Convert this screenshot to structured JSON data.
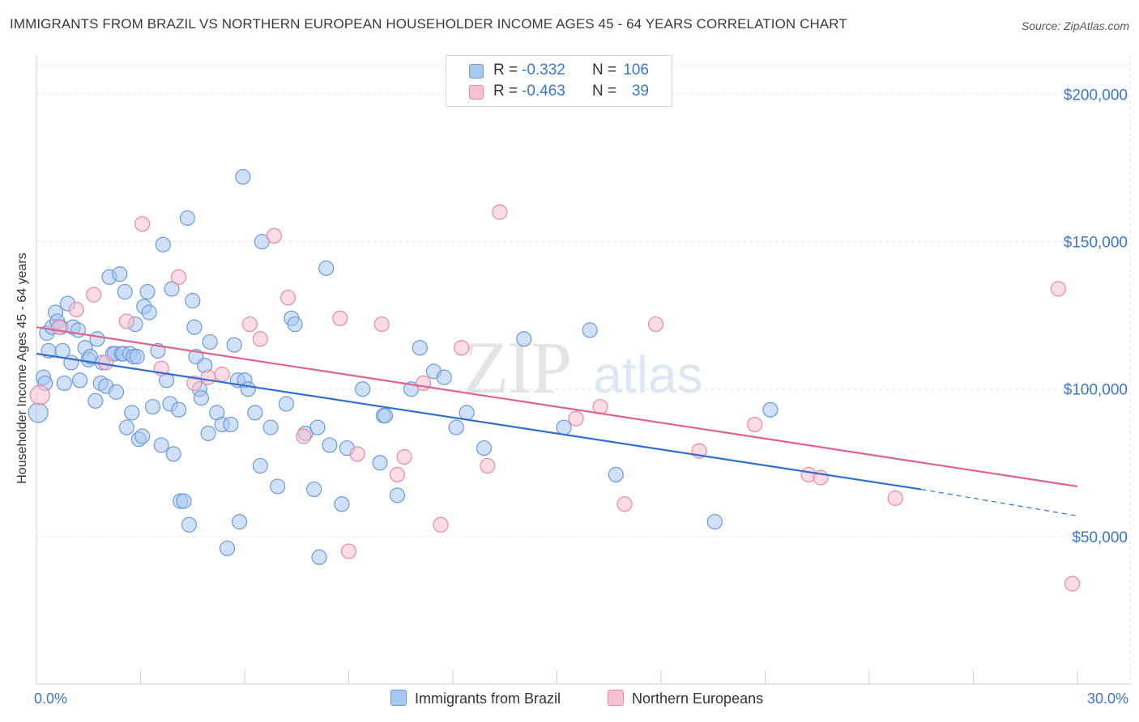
{
  "title": "IMMIGRANTS FROM BRAZIL VS NORTHERN EUROPEAN HOUSEHOLDER INCOME AGES 45 - 64 YEARS CORRELATION CHART",
  "source": "Source: ZipAtlas.com",
  "watermark": {
    "zip": "ZIP",
    "atlas": "atlas"
  },
  "legend_top": [
    {
      "r_label": "R = ",
      "r_value": "-0.332",
      "n_label": "N = ",
      "n_value": "106",
      "color": "#a9c8f0",
      "border": "#6b9ad8"
    },
    {
      "r_label": "R = ",
      "r_value": "-0.463",
      "n_label": "N = ",
      "n_value": "39",
      "color": "#f7c0d0",
      "border": "#e58aa6"
    }
  ],
  "legend_bottom": [
    {
      "label": "Immigrants from Brazil",
      "color": "#a9c8f0",
      "border": "#6b9ad8"
    },
    {
      "label": "Northern Europeans",
      "color": "#f7c0d0",
      "border": "#e58aa6"
    }
  ],
  "chart_data": {
    "type": "scatter",
    "xlabel": "",
    "ylabel": "Householder Income Ages 45 - 64 years",
    "xlim": [
      0,
      30
    ],
    "ylim": [
      0,
      210000
    ],
    "x_tick_labels": [
      {
        "value": 0,
        "label": "0.0%"
      },
      {
        "value": 30,
        "label": "30.0%"
      }
    ],
    "y_ticks": [
      {
        "value": 50000,
        "label": "$50,000"
      },
      {
        "value": 100000,
        "label": "$100,000"
      },
      {
        "value": 150000,
        "label": "$150,000"
      },
      {
        "value": 200000,
        "label": "$200,000"
      }
    ],
    "grid": true,
    "legend_position": "top-center",
    "series": [
      {
        "name": "Immigrants from Brazil",
        "color": "#6b9ad8",
        "fill": "#a9c8f0",
        "trend": {
          "x0": 0,
          "y0": 112000,
          "x1": 25.5,
          "y1": 66000,
          "dash_to_x": 30,
          "dash_to_y": 57000
        },
        "points": [
          [
            0.05,
            92000
          ],
          [
            0.2,
            104000
          ],
          [
            0.25,
            102000
          ],
          [
            0.3,
            119000
          ],
          [
            0.35,
            113000
          ],
          [
            0.45,
            121000
          ],
          [
            0.55,
            126000
          ],
          [
            0.6,
            123000
          ],
          [
            0.7,
            121000
          ],
          [
            0.75,
            113000
          ],
          [
            0.8,
            102000
          ],
          [
            0.9,
            129000
          ],
          [
            1.0,
            109000
          ],
          [
            1.05,
            121000
          ],
          [
            1.2,
            120000
          ],
          [
            1.25,
            103000
          ],
          [
            1.4,
            114000
          ],
          [
            1.5,
            110000
          ],
          [
            1.55,
            111000
          ],
          [
            1.7,
            96000
          ],
          [
            1.75,
            117000
          ],
          [
            1.85,
            102000
          ],
          [
            1.9,
            109000
          ],
          [
            2.0,
            101000
          ],
          [
            2.1,
            138000
          ],
          [
            2.2,
            112000
          ],
          [
            2.25,
            112000
          ],
          [
            2.3,
            99000
          ],
          [
            2.4,
            139000
          ],
          [
            2.45,
            112000
          ],
          [
            2.5,
            112000
          ],
          [
            2.55,
            133000
          ],
          [
            2.6,
            87000
          ],
          [
            2.7,
            112000
          ],
          [
            2.75,
            92000
          ],
          [
            2.8,
            111000
          ],
          [
            2.85,
            122000
          ],
          [
            2.9,
            111000
          ],
          [
            2.95,
            83000
          ],
          [
            3.05,
            84000
          ],
          [
            3.1,
            128000
          ],
          [
            3.2,
            133000
          ],
          [
            3.25,
            126000
          ],
          [
            3.35,
            94000
          ],
          [
            3.5,
            113000
          ],
          [
            3.6,
            81000
          ],
          [
            3.65,
            149000
          ],
          [
            3.75,
            103000
          ],
          [
            3.85,
            95000
          ],
          [
            3.9,
            134000
          ],
          [
            3.95,
            78000
          ],
          [
            4.1,
            93000
          ],
          [
            4.15,
            62000
          ],
          [
            4.25,
            62000
          ],
          [
            4.35,
            158000
          ],
          [
            4.4,
            54000
          ],
          [
            4.5,
            130000
          ],
          [
            4.55,
            121000
          ],
          [
            4.6,
            111000
          ],
          [
            4.7,
            100000
          ],
          [
            4.75,
            97000
          ],
          [
            4.85,
            108000
          ],
          [
            4.95,
            85000
          ],
          [
            5.0,
            116000
          ],
          [
            5.2,
            92000
          ],
          [
            5.35,
            88000
          ],
          [
            5.5,
            46000
          ],
          [
            5.6,
            88000
          ],
          [
            5.7,
            115000
          ],
          [
            5.8,
            103000
          ],
          [
            5.85,
            55000
          ],
          [
            5.95,
            172000
          ],
          [
            6.0,
            103000
          ],
          [
            6.1,
            100000
          ],
          [
            6.3,
            92000
          ],
          [
            6.45,
            74000
          ],
          [
            6.5,
            150000
          ],
          [
            6.75,
            87000
          ],
          [
            6.95,
            67000
          ],
          [
            7.2,
            95000
          ],
          [
            7.35,
            124000
          ],
          [
            7.45,
            122000
          ],
          [
            7.75,
            85000
          ],
          [
            8.0,
            66000
          ],
          [
            8.1,
            87000
          ],
          [
            8.15,
            43000
          ],
          [
            8.35,
            141000
          ],
          [
            8.45,
            81000
          ],
          [
            8.8,
            61000
          ],
          [
            8.95,
            80000
          ],
          [
            9.4,
            100000
          ],
          [
            9.9,
            75000
          ],
          [
            10.0,
            91000
          ],
          [
            10.05,
            91000
          ],
          [
            10.4,
            64000
          ],
          [
            10.8,
            100000
          ],
          [
            11.05,
            114000
          ],
          [
            11.45,
            106000
          ],
          [
            11.75,
            104000
          ],
          [
            12.1,
            87000
          ],
          [
            12.4,
            92000
          ],
          [
            12.9,
            80000
          ],
          [
            14.05,
            117000
          ],
          [
            15.2,
            87000
          ],
          [
            15.95,
            120000
          ],
          [
            16.7,
            71000
          ],
          [
            19.55,
            55000
          ],
          [
            21.15,
            93000
          ]
        ]
      },
      {
        "name": "Northern Europeans",
        "color": "#e58aa6",
        "fill": "#f7c0d0",
        "trend": {
          "x0": 0,
          "y0": 121000,
          "x1": 30,
          "y1": 67000
        },
        "points": [
          [
            0.1,
            98000
          ],
          [
            0.65,
            121000
          ],
          [
            1.15,
            127000
          ],
          [
            1.65,
            132000
          ],
          [
            2.0,
            109000
          ],
          [
            2.6,
            123000
          ],
          [
            3.05,
            156000
          ],
          [
            3.6,
            107000
          ],
          [
            4.1,
            138000
          ],
          [
            4.55,
            102000
          ],
          [
            4.95,
            104000
          ],
          [
            5.35,
            105000
          ],
          [
            6.15,
            122000
          ],
          [
            6.45,
            117000
          ],
          [
            6.85,
            152000
          ],
          [
            7.25,
            131000
          ],
          [
            7.7,
            84000
          ],
          [
            8.75,
            124000
          ],
          [
            9.0,
            45000
          ],
          [
            9.25,
            78000
          ],
          [
            9.95,
            122000
          ],
          [
            10.4,
            71000
          ],
          [
            10.6,
            77000
          ],
          [
            11.15,
            102000
          ],
          [
            11.65,
            54000
          ],
          [
            12.25,
            114000
          ],
          [
            13.0,
            74000
          ],
          [
            13.35,
            160000
          ],
          [
            15.55,
            90000
          ],
          [
            16.25,
            94000
          ],
          [
            16.95,
            61000
          ],
          [
            17.85,
            122000
          ],
          [
            19.1,
            79000
          ],
          [
            20.7,
            88000
          ],
          [
            22.25,
            71000
          ],
          [
            22.6,
            70000
          ],
          [
            24.75,
            63000
          ],
          [
            29.45,
            134000
          ],
          [
            29.85,
            34000
          ]
        ]
      }
    ]
  }
}
